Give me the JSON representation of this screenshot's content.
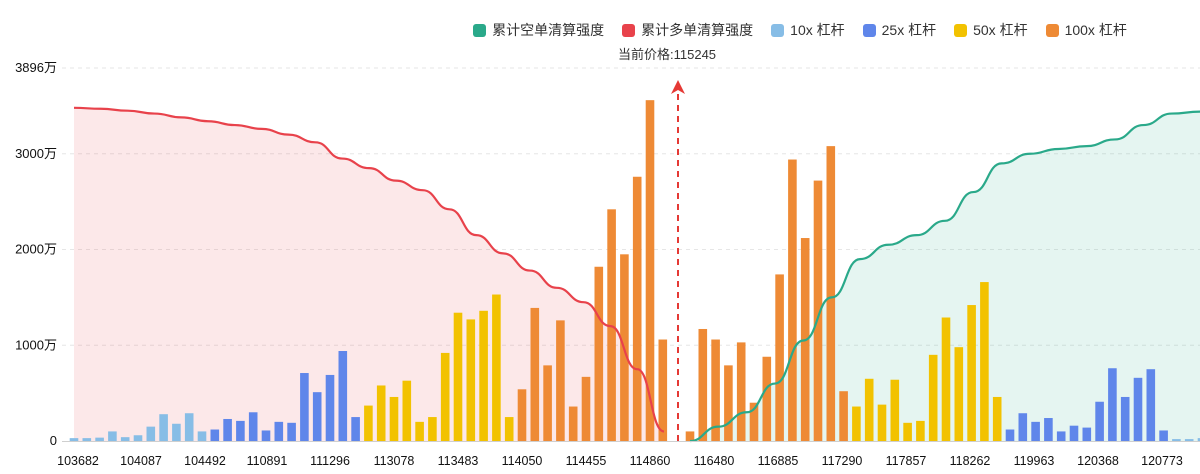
{
  "legend": [
    {
      "label": "累计空单清算强度",
      "color": "#2aa98a"
    },
    {
      "label": "累计多单清算强度",
      "color": "#e8424b"
    },
    {
      "label": "10x 杠杆",
      "color": "#87bde6"
    },
    {
      "label": "25x 杠杆",
      "color": "#5f86ea"
    },
    {
      "label": "50x 杠杆",
      "color": "#f2c200"
    },
    {
      "label": "100x 杠杆",
      "color": "#ee8a35"
    }
  ],
  "price_label": "当前价格:115245",
  "chart_data": {
    "type": "bar",
    "ylim": [
      0,
      3896
    ],
    "y_tick_labels": [
      "0",
      "1000万",
      "2000万",
      "3000万",
      "3896万"
    ],
    "y_tick_values": [
      0,
      1000,
      2000,
      3000,
      3896
    ],
    "x_tick_labels": [
      "103682",
      "104087",
      "104492",
      "110891",
      "111296",
      "113078",
      "113483",
      "114050",
      "114455",
      "114860",
      "116480",
      "116885",
      "117290",
      "117857",
      "118262",
      "119963",
      "120368",
      "120773"
    ],
    "current_price": "115245",
    "bars_left": [
      {
        "v": 30,
        "lev": "10x"
      },
      {
        "v": 30,
        "lev": "10x"
      },
      {
        "v": 35,
        "lev": "10x"
      },
      {
        "v": 100,
        "lev": "10x"
      },
      {
        "v": 40,
        "lev": "10x"
      },
      {
        "v": 60,
        "lev": "10x"
      },
      {
        "v": 150,
        "lev": "10x"
      },
      {
        "v": 280,
        "lev": "10x"
      },
      {
        "v": 180,
        "lev": "10x"
      },
      {
        "v": 290,
        "lev": "10x"
      },
      {
        "v": 100,
        "lev": "10x"
      },
      {
        "v": 120,
        "lev": "25x"
      },
      {
        "v": 230,
        "lev": "25x"
      },
      {
        "v": 210,
        "lev": "25x"
      },
      {
        "v": 300,
        "lev": "25x"
      },
      {
        "v": 110,
        "lev": "25x"
      },
      {
        "v": 200,
        "lev": "25x"
      },
      {
        "v": 190,
        "lev": "25x"
      },
      {
        "v": 710,
        "lev": "25x"
      },
      {
        "v": 510,
        "lev": "25x"
      },
      {
        "v": 690,
        "lev": "25x"
      },
      {
        "v": 940,
        "lev": "25x"
      },
      {
        "v": 250,
        "lev": "25x"
      },
      {
        "v": 370,
        "lev": "50x"
      },
      {
        "v": 580,
        "lev": "50x"
      },
      {
        "v": 460,
        "lev": "50x"
      },
      {
        "v": 630,
        "lev": "50x"
      },
      {
        "v": 200,
        "lev": "50x"
      },
      {
        "v": 250,
        "lev": "50x"
      },
      {
        "v": 920,
        "lev": "50x"
      },
      {
        "v": 1340,
        "lev": "50x"
      },
      {
        "v": 1270,
        "lev": "50x"
      },
      {
        "v": 1360,
        "lev": "50x"
      },
      {
        "v": 1530,
        "lev": "50x"
      },
      {
        "v": 250,
        "lev": "50x"
      },
      {
        "v": 540,
        "lev": "100x"
      },
      {
        "v": 1390,
        "lev": "100x"
      },
      {
        "v": 790,
        "lev": "100x"
      },
      {
        "v": 1260,
        "lev": "100x"
      },
      {
        "v": 360,
        "lev": "100x"
      },
      {
        "v": 670,
        "lev": "100x"
      },
      {
        "v": 1820,
        "lev": "100x"
      },
      {
        "v": 2420,
        "lev": "100x"
      },
      {
        "v": 1950,
        "lev": "100x"
      },
      {
        "v": 2760,
        "lev": "100x"
      },
      {
        "v": 3560,
        "lev": "100x"
      },
      {
        "v": 1060,
        "lev": "100x"
      }
    ],
    "bars_right": [
      {
        "v": 100,
        "lev": "100x"
      },
      {
        "v": 1170,
        "lev": "100x"
      },
      {
        "v": 1060,
        "lev": "100x"
      },
      {
        "v": 790,
        "lev": "100x"
      },
      {
        "v": 1030,
        "lev": "100x"
      },
      {
        "v": 400,
        "lev": "100x"
      },
      {
        "v": 880,
        "lev": "100x"
      },
      {
        "v": 1740,
        "lev": "100x"
      },
      {
        "v": 2940,
        "lev": "100x"
      },
      {
        "v": 2120,
        "lev": "100x"
      },
      {
        "v": 2720,
        "lev": "100x"
      },
      {
        "v": 3080,
        "lev": "100x"
      },
      {
        "v": 520,
        "lev": "100x"
      },
      {
        "v": 360,
        "lev": "50x"
      },
      {
        "v": 650,
        "lev": "50x"
      },
      {
        "v": 380,
        "lev": "50x"
      },
      {
        "v": 640,
        "lev": "50x"
      },
      {
        "v": 190,
        "lev": "50x"
      },
      {
        "v": 210,
        "lev": "50x"
      },
      {
        "v": 900,
        "lev": "50x"
      },
      {
        "v": 1290,
        "lev": "50x"
      },
      {
        "v": 980,
        "lev": "50x"
      },
      {
        "v": 1420,
        "lev": "50x"
      },
      {
        "v": 1660,
        "lev": "50x"
      },
      {
        "v": 460,
        "lev": "50x"
      },
      {
        "v": 120,
        "lev": "25x"
      },
      {
        "v": 290,
        "lev": "25x"
      },
      {
        "v": 200,
        "lev": "25x"
      },
      {
        "v": 240,
        "lev": "25x"
      },
      {
        "v": 100,
        "lev": "25x"
      },
      {
        "v": 160,
        "lev": "25x"
      },
      {
        "v": 140,
        "lev": "25x"
      },
      {
        "v": 410,
        "lev": "25x"
      },
      {
        "v": 760,
        "lev": "25x"
      },
      {
        "v": 460,
        "lev": "25x"
      },
      {
        "v": 660,
        "lev": "25x"
      },
      {
        "v": 750,
        "lev": "25x"
      },
      {
        "v": 110,
        "lev": "25x"
      },
      {
        "v": 20,
        "lev": "10x"
      },
      {
        "v": 20,
        "lev": "10x"
      },
      {
        "v": 30,
        "lev": "10x"
      }
    ],
    "long_cumulative": [
      3480,
      3470,
      3450,
      3420,
      3380,
      3340,
      3300,
      3260,
      3200,
      3120,
      2950,
      2850,
      2720,
      2620,
      2420,
      2150,
      1960,
      1780,
      1600,
      1450,
      1200,
      750,
      100
    ],
    "short_cumulative": [
      0,
      150,
      300,
      600,
      1050,
      1500,
      1900,
      2050,
      2150,
      2300,
      2600,
      2900,
      3000,
      3050,
      3080,
      3150,
      3300,
      3420,
      3440
    ]
  }
}
